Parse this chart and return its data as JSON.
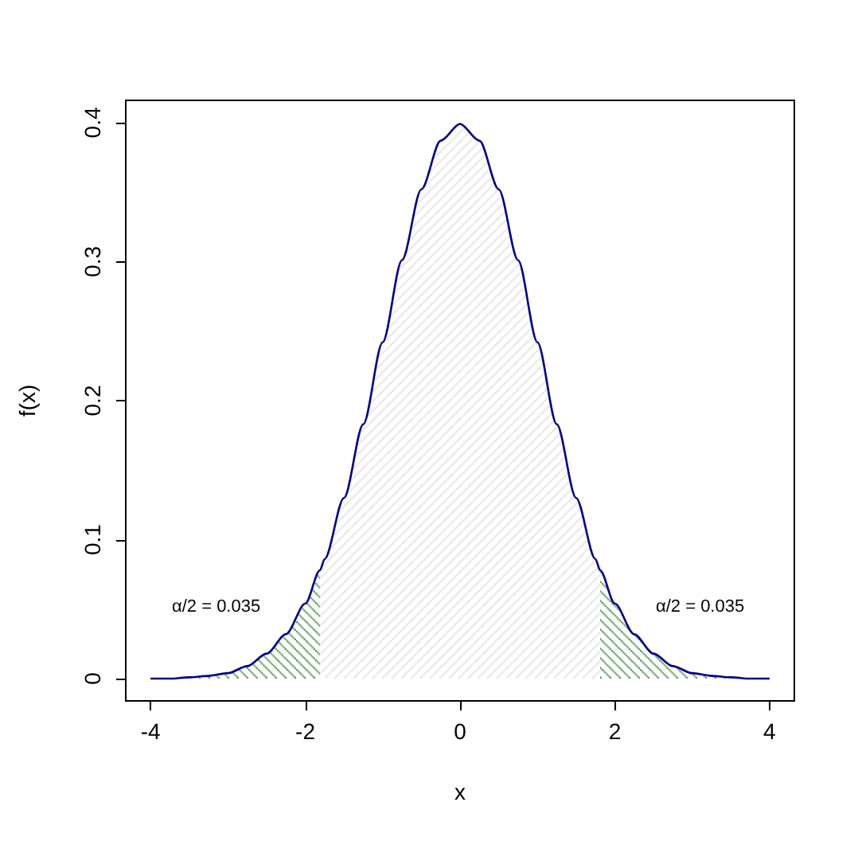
{
  "chart_data": {
    "type": "line",
    "xlabel": "x",
    "ylabel": "f(x)",
    "xlim": [
      -4.32,
      4.32
    ],
    "ylim": [
      -0.016,
      0.416
    ],
    "xticks": [
      -4,
      -2,
      0,
      2,
      4
    ],
    "yticks": [
      0,
      0.1,
      0.2,
      0.3,
      0.4
    ],
    "grid": false,
    "marker": "none",
    "line_style": "solid",
    "series": [
      {
        "type": "area",
        "color": "#006400",
        "x": [
          -4,
          -3.75,
          -3.5,
          -3.25,
          -3,
          -2.75,
          -2.5,
          -2.25,
          -2,
          -1.81
        ],
        "values": [
          0,
          0,
          0.001,
          0.002,
          0.004,
          0.009,
          0.018,
          0.032,
          0.054,
          0.078
        ]
      },
      {
        "type": "area",
        "color": "#d3d3d3",
        "x": [
          -1.81,
          -1.75,
          -1.5,
          -1.25,
          -1,
          -0.75,
          -0.5,
          -0.25,
          0,
          0.25,
          0.5,
          0.75,
          1,
          1.25,
          1.5,
          1.75,
          1.81
        ],
        "values": [
          0.078,
          0.086,
          0.13,
          0.183,
          0.242,
          0.301,
          0.352,
          0.387,
          0.399,
          0.387,
          0.352,
          0.301,
          0.242,
          0.183,
          0.13,
          0.086,
          0.078
        ]
      },
      {
        "type": "area",
        "color": "#006400",
        "x": [
          1.81,
          2,
          2.25,
          2.5,
          2.75,
          3,
          3.25,
          3.5,
          3.75,
          4
        ],
        "values": [
          0.078,
          0.054,
          0.032,
          0.018,
          0.009,
          0.004,
          0.002,
          0.001,
          0,
          0
        ]
      },
      {
        "color": "#00008b",
        "x": [
          -4,
          -3.75,
          -3.5,
          -3.25,
          -3,
          -2.75,
          -2.5,
          -2.25,
          -2,
          -1.81,
          -1.75,
          -1.5,
          -1.25,
          -1,
          -0.75,
          -0.5,
          -0.25,
          0,
          0.25,
          0.5,
          0.75,
          1,
          1.25,
          1.5,
          1.75,
          1.81,
          2,
          2.25,
          2.5,
          2.75,
          3,
          3.25,
          3.5,
          3.75,
          4
        ],
        "values": [
          0,
          0,
          0.001,
          0.002,
          0.004,
          0.009,
          0.018,
          0.032,
          0.054,
          0.078,
          0.086,
          0.13,
          0.183,
          0.242,
          0.301,
          0.352,
          0.387,
          0.399,
          0.387,
          0.352,
          0.301,
          0.242,
          0.183,
          0.13,
          0.086,
          0.078,
          0.054,
          0.032,
          0.018,
          0.009,
          0.004,
          0.002,
          0.001,
          0,
          0
        ]
      }
    ],
    "annotations": [
      "α/2 = 0.035",
      "α/2 = 0.035"
    ]
  }
}
